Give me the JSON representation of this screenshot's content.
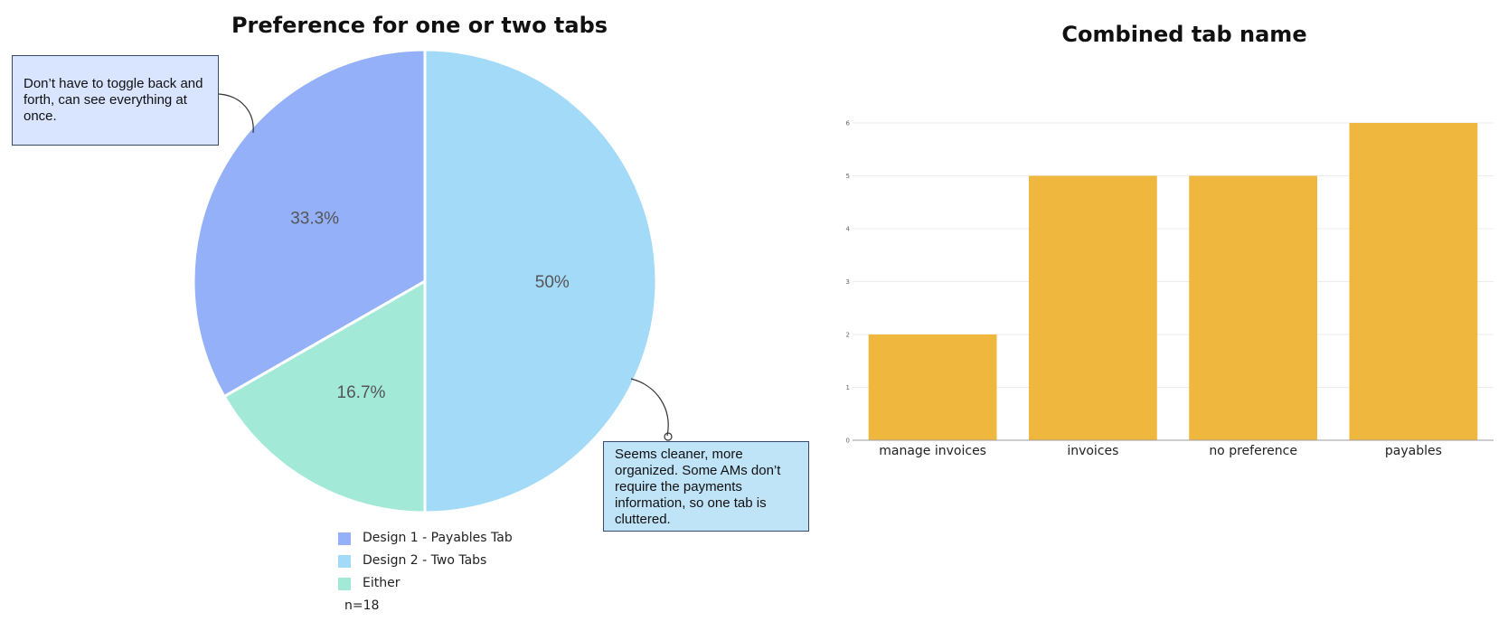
{
  "chart_data": [
    {
      "type": "pie",
      "title": "Preference for one or two tabs",
      "slices": [
        {
          "name": "Design 1 - Payables Tab",
          "value": 33.3,
          "label": "33.3%",
          "color": "#94b0f8"
        },
        {
          "name": "Design 2 - Two Tabs",
          "value": 50,
          "label": "50%",
          "color": "#a3daf7"
        },
        {
          "name": "Either",
          "value": 16.7,
          "label": "16.7%",
          "color": "#a3e9d8"
        }
      ],
      "legend_position": "bottom",
      "note": "n=18",
      "annotations": [
        {
          "text": "Don’t have to toggle back and forth, can see everything at once.",
          "slice": "Design 1 - Payables Tab"
        },
        {
          "text": "Seems cleaner, more organized. Some AMs don’t require the payments information, so one tab is cluttered.",
          "slice": "Design 2 - Two Tabs"
        }
      ]
    },
    {
      "type": "bar",
      "title": "Combined tab name",
      "categories": [
        "manage invoices",
        "invoices",
        "no preference",
        "payables"
      ],
      "values": [
        2,
        5,
        5,
        6
      ],
      "ylim": [
        0,
        6
      ],
      "yticks": [
        0,
        1,
        2,
        3,
        4,
        5,
        6
      ],
      "grid": true,
      "color": "#f0b73e",
      "xlabel": "",
      "ylabel": ""
    }
  ]
}
